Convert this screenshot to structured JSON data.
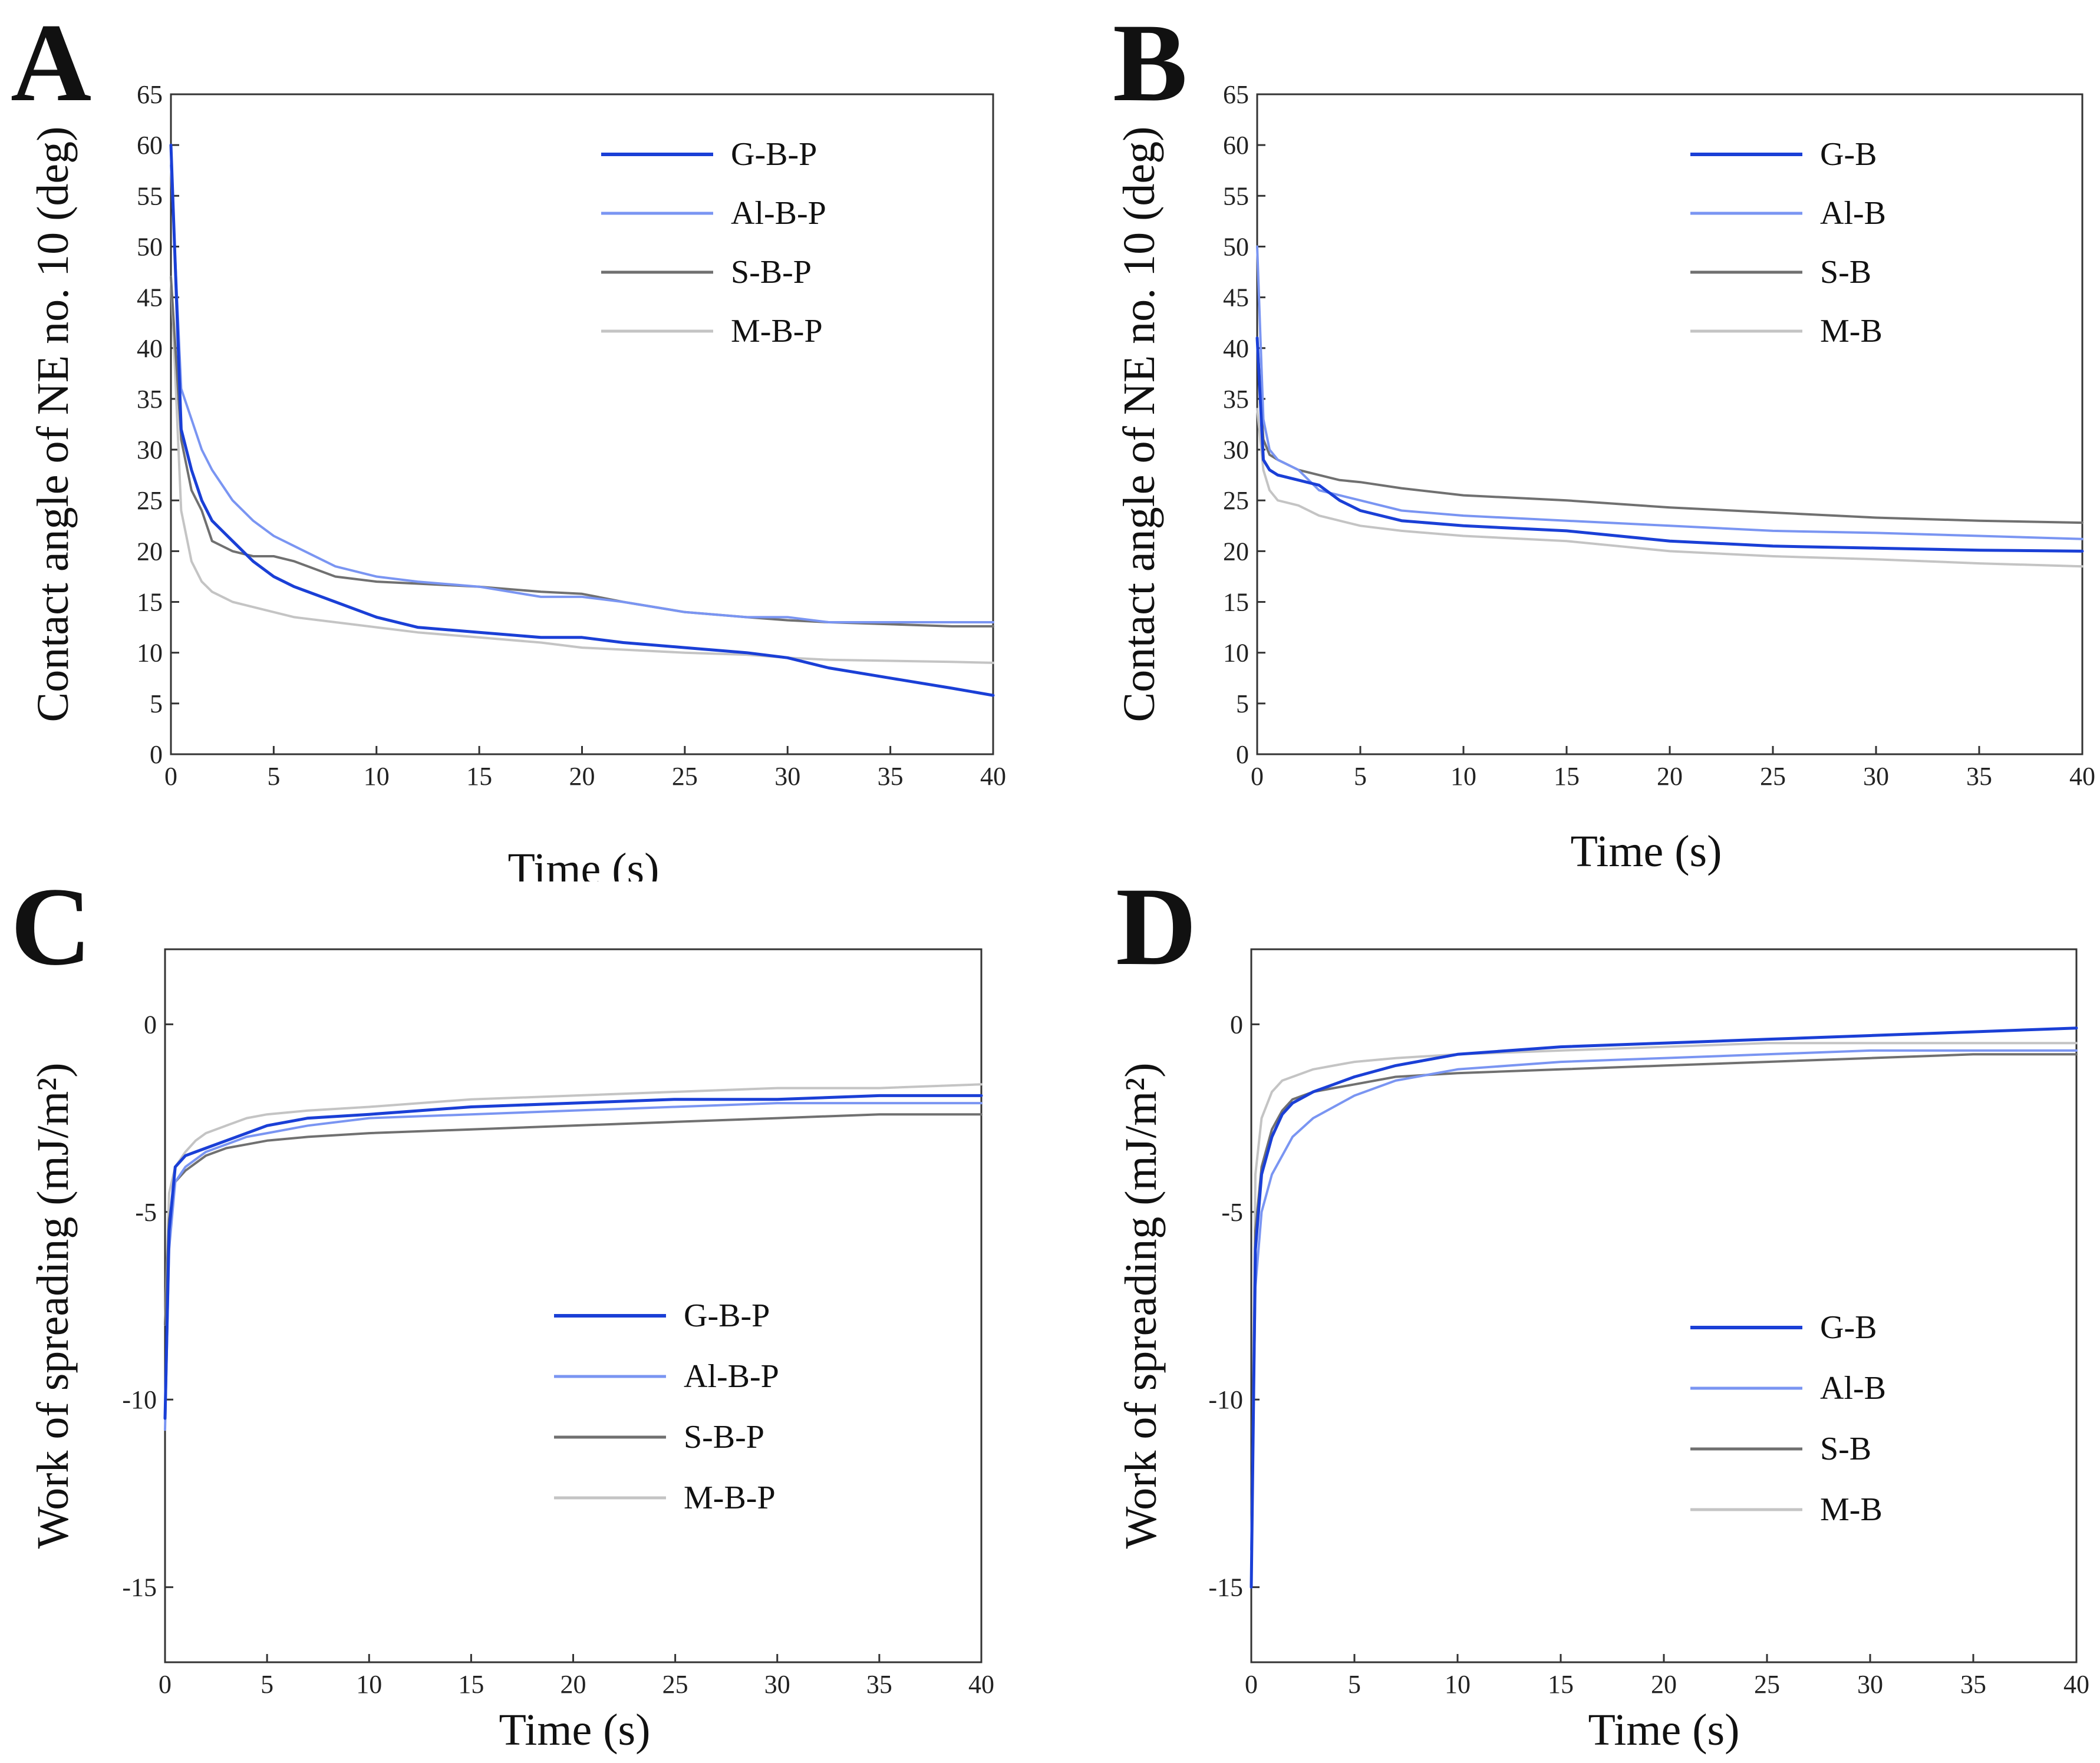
{
  "figure": {
    "panels": [
      {
        "letter": "A"
      },
      {
        "letter": "B"
      },
      {
        "letter": "C"
      },
      {
        "letter": "D"
      }
    ]
  },
  "colors": {
    "G": "#1a3fd6",
    "Al": "#7a95f2",
    "S": "#707070",
    "M": "#c4c4c4"
  },
  "chart_data": [
    {
      "type": "line",
      "panel": "A",
      "title": "",
      "xlabel": "Time (s)",
      "ylabel": "Contact angle of NE no. 10 (deg)",
      "xlim": [
        0,
        40
      ],
      "ylim": [
        0,
        65
      ],
      "xticks": [
        0,
        5,
        10,
        15,
        20,
        25,
        30,
        35,
        40
      ],
      "yticks": [
        0,
        5,
        10,
        15,
        20,
        25,
        30,
        35,
        40,
        45,
        50,
        55,
        60,
        65
      ],
      "x": [
        0,
        0.5,
        1,
        1.5,
        2,
        3,
        4,
        5,
        6,
        8,
        10,
        12,
        15,
        18,
        20,
        22,
        25,
        28,
        30,
        32,
        35,
        38,
        40
      ],
      "series": [
        {
          "name": "G-B-P",
          "color_key": "G",
          "width": 5,
          "values": [
            60,
            32,
            28,
            25,
            23,
            21,
            19,
            17.5,
            16.5,
            15,
            13.5,
            12.5,
            12,
            11.5,
            11.5,
            11,
            10.5,
            10,
            9.5,
            8.5,
            7.5,
            6.5,
            5.8
          ]
        },
        {
          "name": "Al-B-P",
          "color_key": "Al",
          "width": 4,
          "values": [
            58,
            36,
            33,
            30,
            28,
            25,
            23,
            21.5,
            20.5,
            18.5,
            17.5,
            17,
            16.5,
            15.5,
            15.5,
            15,
            14,
            13.5,
            13.5,
            13,
            13,
            13,
            13
          ]
        },
        {
          "name": "S-B-P",
          "color_key": "S",
          "width": 4,
          "values": [
            47,
            31,
            26,
            24,
            21,
            20,
            19.5,
            19.5,
            19,
            17.5,
            17,
            16.8,
            16.5,
            16,
            15.8,
            15,
            14,
            13.5,
            13.2,
            13,
            12.8,
            12.6,
            12.6
          ]
        },
        {
          "name": "M-B-P",
          "color_key": "M",
          "width": 4,
          "values": [
            47,
            24,
            19,
            17,
            16,
            15,
            14.5,
            14,
            13.5,
            13,
            12.5,
            12,
            11.5,
            11,
            10.5,
            10.3,
            10,
            9.8,
            9.5,
            9.3,
            9.2,
            9.1,
            9
          ]
        }
      ]
    },
    {
      "type": "line",
      "panel": "B",
      "title": "",
      "xlabel": "Time (s)",
      "ylabel": "Contact angle of NE no. 10 (deg)",
      "xlim": [
        0,
        40
      ],
      "ylim": [
        0,
        65
      ],
      "xticks": [
        0,
        5,
        10,
        15,
        20,
        25,
        30,
        35,
        40
      ],
      "yticks": [
        0,
        5,
        10,
        15,
        20,
        25,
        30,
        35,
        40,
        45,
        50,
        55,
        60,
        65
      ],
      "x": [
        0,
        0.3,
        0.6,
        1,
        2,
        3,
        4,
        5,
        7,
        10,
        15,
        20,
        25,
        30,
        35,
        40
      ],
      "series": [
        {
          "name": "G-B",
          "color_key": "G",
          "width": 5,
          "values": [
            41,
            29,
            28,
            27.5,
            27,
            26.5,
            25,
            24,
            23,
            22.5,
            22,
            21,
            20.5,
            20.3,
            20.1,
            20
          ]
        },
        {
          "name": "Al-B",
          "color_key": "Al",
          "width": 4,
          "values": [
            50,
            33,
            30,
            29,
            28,
            26,
            25.5,
            25,
            24,
            23.5,
            23,
            22.5,
            22,
            21.8,
            21.5,
            21.2
          ]
        },
        {
          "name": "S-B",
          "color_key": "S",
          "width": 4,
          "values": [
            41,
            31,
            29.5,
            29,
            28,
            27.5,
            27,
            26.8,
            26.2,
            25.5,
            25,
            24.3,
            23.8,
            23.3,
            23,
            22.8
          ]
        },
        {
          "name": "M-B",
          "color_key": "M",
          "width": 4,
          "values": [
            34,
            28,
            26,
            25,
            24.5,
            23.5,
            23,
            22.5,
            22,
            21.5,
            21,
            20,
            19.5,
            19.2,
            18.8,
            18.5
          ]
        }
      ]
    },
    {
      "type": "line",
      "panel": "C",
      "title": "",
      "xlabel": "Time (s)",
      "ylabel": "Work of spreading (mJ/m²)",
      "xlim": [
        0,
        40
      ],
      "ylim": [
        -17,
        2
      ],
      "xticks": [
        0,
        5,
        10,
        15,
        20,
        25,
        30,
        35,
        40
      ],
      "yticks": [
        -15,
        -10,
        -5,
        0
      ],
      "x": [
        0,
        0.2,
        0.5,
        1,
        1.5,
        2,
        3,
        4,
        5,
        7,
        10,
        15,
        20,
        25,
        30,
        35,
        40
      ],
      "series": [
        {
          "name": "G-B-P",
          "color_key": "G",
          "width": 5,
          "values": [
            -10.5,
            -5.5,
            -3.8,
            -3.5,
            -3.4,
            -3.3,
            -3.1,
            -2.9,
            -2.7,
            -2.5,
            -2.4,
            -2.2,
            -2.1,
            -2.0,
            -2.0,
            -1.9,
            -1.9
          ]
        },
        {
          "name": "Al-B-P",
          "color_key": "Al",
          "width": 4,
          "values": [
            -10.8,
            -6,
            -4.2,
            -3.8,
            -3.6,
            -3.4,
            -3.2,
            -3.0,
            -2.9,
            -2.7,
            -2.5,
            -2.4,
            -2.3,
            -2.2,
            -2.1,
            -2.1,
            -2.1
          ]
        },
        {
          "name": "S-B-P",
          "color_key": "S",
          "width": 4,
          "values": [
            -8,
            -5.2,
            -4.2,
            -3.9,
            -3.7,
            -3.5,
            -3.3,
            -3.2,
            -3.1,
            -3.0,
            -2.9,
            -2.8,
            -2.7,
            -2.6,
            -2.5,
            -2.4,
            -2.4
          ]
        },
        {
          "name": "M-B-P",
          "color_key": "M",
          "width": 4,
          "values": [
            -8,
            -4.5,
            -3.8,
            -3.4,
            -3.1,
            -2.9,
            -2.7,
            -2.5,
            -2.4,
            -2.3,
            -2.2,
            -2.0,
            -1.9,
            -1.8,
            -1.7,
            -1.7,
            -1.6
          ]
        }
      ]
    },
    {
      "type": "line",
      "panel": "D",
      "title": "",
      "xlabel": "Time (s)",
      "ylabel": "Work of spreading (mJ/m²)",
      "xlim": [
        0,
        40
      ],
      "ylim": [
        -17,
        2
      ],
      "xticks": [
        0,
        5,
        10,
        15,
        20,
        25,
        30,
        35,
        40
      ],
      "yticks": [
        -15,
        -10,
        -5,
        0
      ],
      "x": [
        0,
        0.2,
        0.5,
        1,
        1.5,
        2,
        3,
        4,
        5,
        7,
        10,
        15,
        20,
        25,
        30,
        35,
        40
      ],
      "series": [
        {
          "name": "G-B",
          "color_key": "G",
          "width": 5,
          "values": [
            -15,
            -6,
            -4,
            -3,
            -2.4,
            -2.1,
            -1.8,
            -1.6,
            -1.4,
            -1.1,
            -0.8,
            -0.6,
            -0.5,
            -0.4,
            -0.3,
            -0.2,
            -0.1
          ]
        },
        {
          "name": "Al-B",
          "color_key": "Al",
          "width": 4,
          "values": [
            -14,
            -7,
            -5,
            -4,
            -3.5,
            -3.0,
            -2.5,
            -2.2,
            -1.9,
            -1.5,
            -1.2,
            -1.0,
            -0.9,
            -0.8,
            -0.7,
            -0.7,
            -0.7
          ]
        },
        {
          "name": "S-B",
          "color_key": "S",
          "width": 4,
          "values": [
            -15,
            -5.5,
            -3.8,
            -2.8,
            -2.3,
            -2.0,
            -1.8,
            -1.7,
            -1.6,
            -1.4,
            -1.3,
            -1.2,
            -1.1,
            -1.0,
            -0.9,
            -0.8,
            -0.8
          ]
        },
        {
          "name": "M-B",
          "color_key": "M",
          "width": 4,
          "values": [
            -15,
            -4,
            -2.5,
            -1.8,
            -1.5,
            -1.4,
            -1.2,
            -1.1,
            -1.0,
            -0.9,
            -0.8,
            -0.7,
            -0.6,
            -0.5,
            -0.5,
            -0.5,
            -0.5
          ]
        }
      ]
    }
  ]
}
